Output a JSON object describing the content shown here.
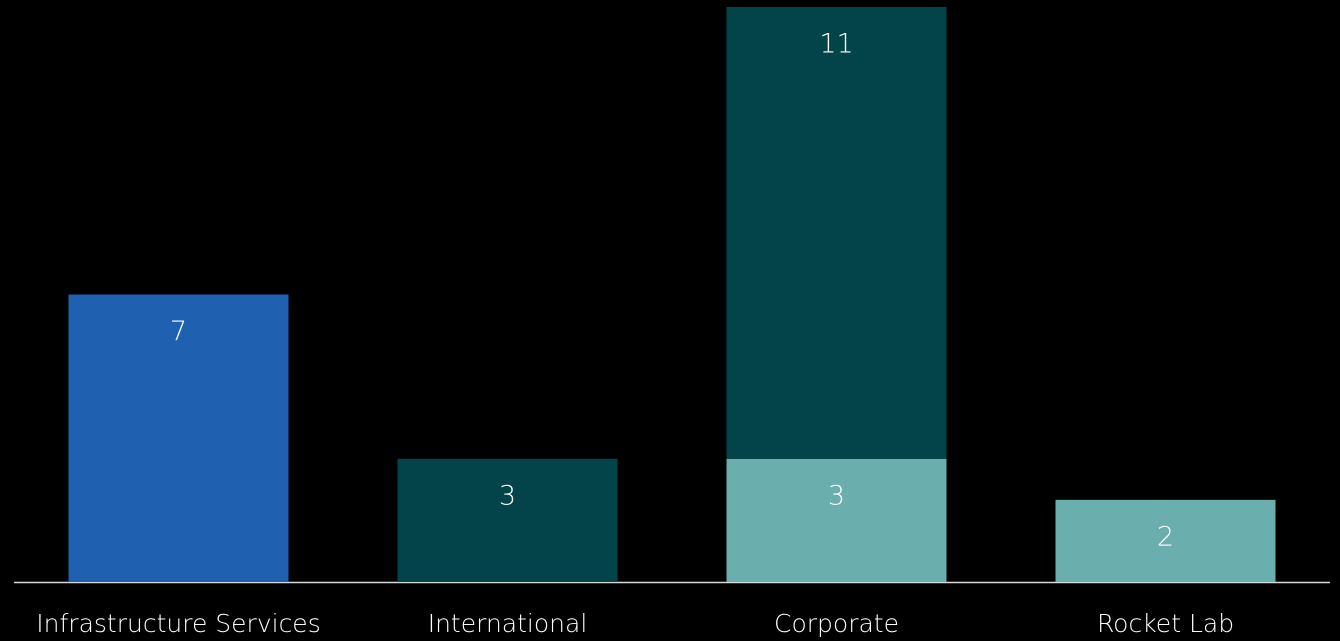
{
  "chart_data": {
    "type": "stacked_bar",
    "categories": [
      "Infrastructure Services",
      "International",
      "Corporate",
      "Rocket Lab"
    ],
    "series": [
      {
        "color": "#6aaeae",
        "values": [
          null,
          null,
          3,
          2
        ]
      },
      {
        "color": "#03444a",
        "values": [
          null,
          3,
          11,
          null
        ]
      },
      {
        "color": "#2060b0",
        "values": [
          7,
          null,
          null,
          null
        ]
      }
    ],
    "ylim": [
      0,
      14
    ]
  }
}
